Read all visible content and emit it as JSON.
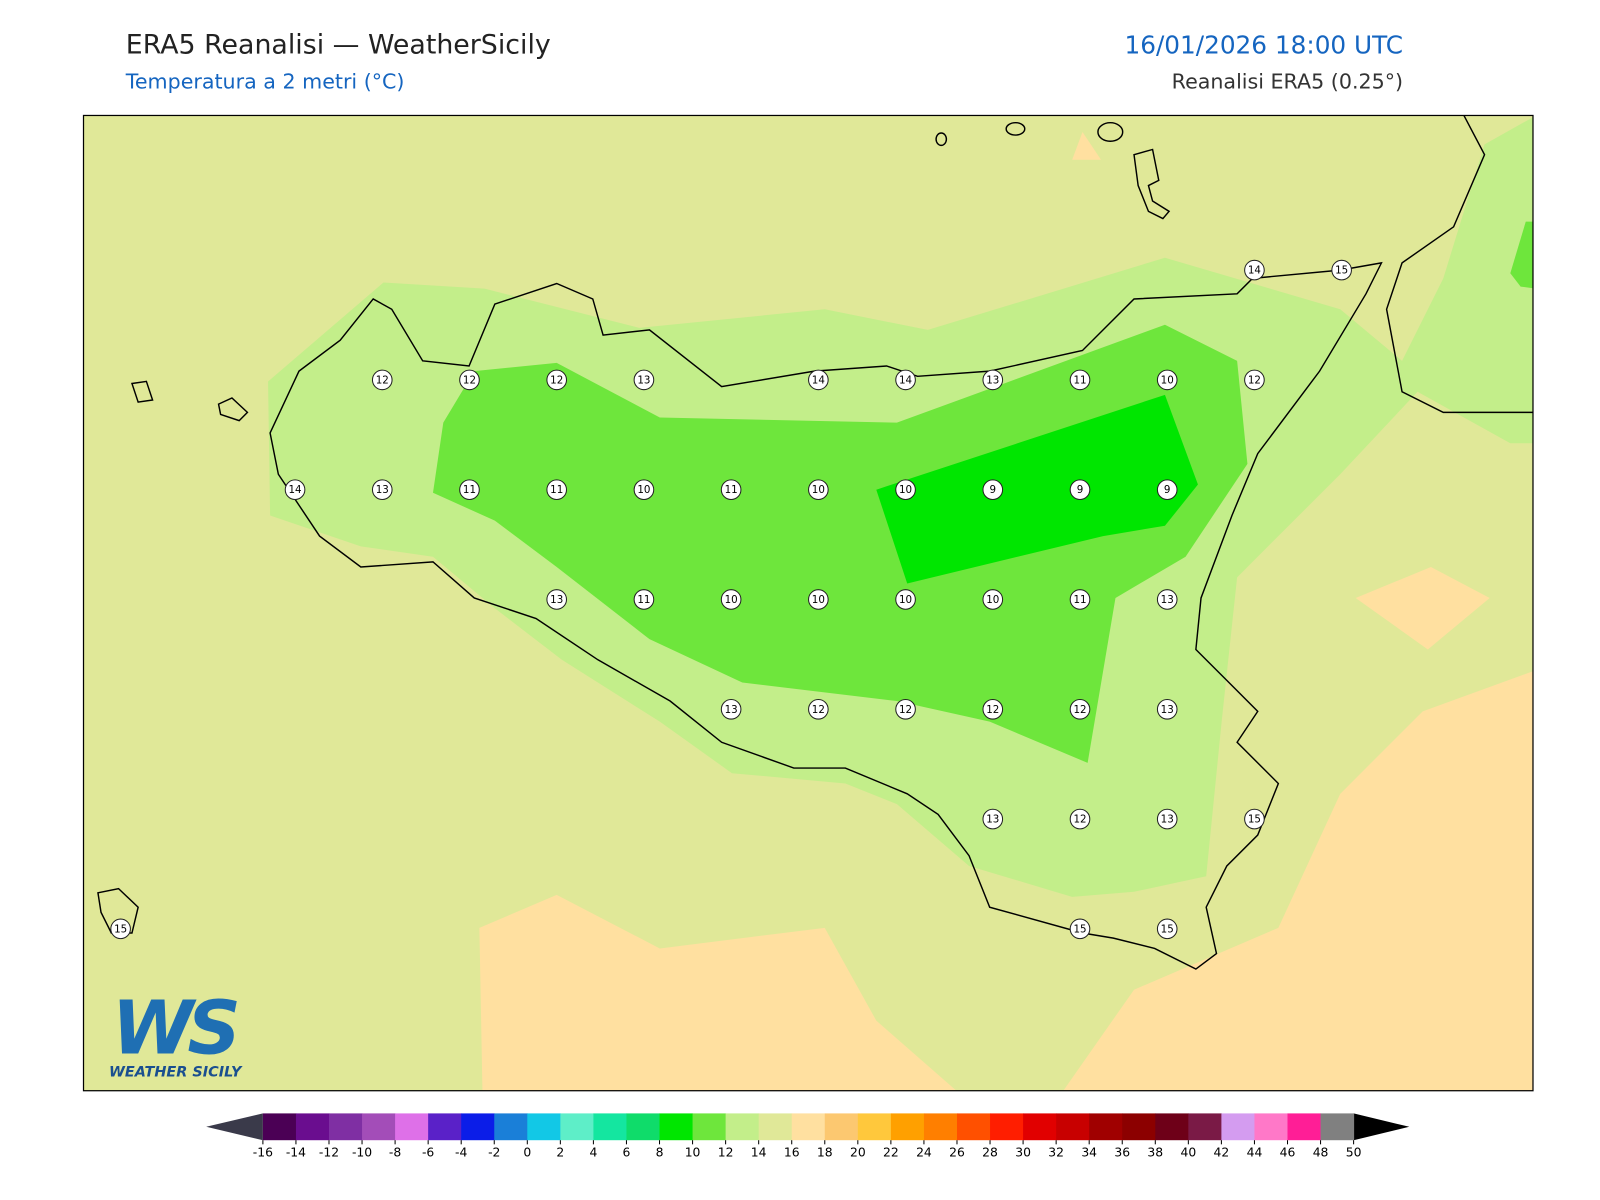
{
  "header": {
    "title": "ERA5 Reanalisi — WeatherSicily",
    "subtitle": "Temperatura a 2 metri (°C)",
    "datetime": "16/01/2026 18:00 UTC",
    "source": "Reanalisi ERA5 (0.25°)"
  },
  "map": {
    "background": "#e0e898",
    "stations": [
      14,
      15,
      12,
      12,
      12,
      13,
      14,
      14,
      13,
      11,
      10,
      12,
      14,
      13,
      11,
      11,
      10,
      11,
      10,
      10,
      9,
      9,
      9,
      13,
      11,
      10,
      10,
      10,
      10,
      11,
      13,
      13,
      12,
      12,
      12,
      12,
      13,
      13,
      12,
      13,
      15,
      15,
      15,
      15
    ]
  },
  "logo": {
    "mark": "WS",
    "text": "WEATHER SICILY"
  },
  "colorbar": {
    "ticks": [
      -16,
      -14,
      -12,
      -10,
      -8,
      -6,
      -4,
      -2,
      0,
      2,
      4,
      6,
      8,
      10,
      12,
      14,
      16,
      18,
      20,
      22,
      24,
      26,
      28,
      30,
      32,
      34,
      36,
      38,
      40,
      42,
      44,
      46,
      48,
      50
    ],
    "colors": [
      "#4b0055",
      "#6a0d8f",
      "#7f2fa3",
      "#a34db8",
      "#de70e8",
      "#5a21c8",
      "#0b1de8",
      "#1a7fd8",
      "#12c8e6",
      "#5eeec8",
      "#14e6a0",
      "#0fdc6a",
      "#00e600",
      "#6ee63c",
      "#c3ee8a",
      "#e0e898",
      "#ffe0a0",
      "#fcc870",
      "#ffc83c",
      "#ffa000",
      "#ff7f00",
      "#ff5000",
      "#ff1e00",
      "#e10000",
      "#c80000",
      "#a00000",
      "#8c0000",
      "#6e0018",
      "#7a1a46",
      "#d49cf0",
      "#ff78c8",
      "#ff1e96",
      "#808080",
      "#3a3a3a"
    ],
    "under": "#3a3a4a",
    "over": "#000000"
  }
}
